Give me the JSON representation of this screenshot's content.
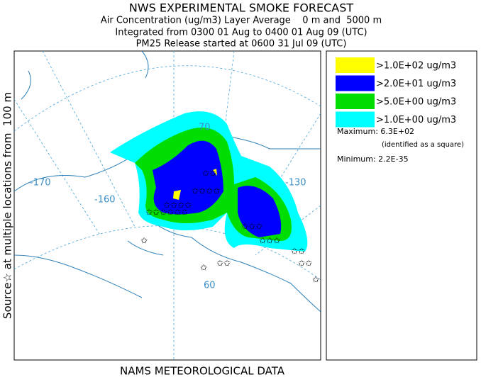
{
  "header": {
    "title": "NWS EXPERIMENTAL SMOKE FORECAST",
    "lines": [
      "Air Concentration (ug/m3) Layer Average    0 m and  5000 m",
      "Integrated from 0300 01 Aug to 0400 01 Aug 09 (UTC)",
      "PM25 Release started at 0600 31 Jul 09 (UTC)"
    ]
  },
  "side_label": "Source☆ at multiple locations from  100 m",
  "footer": "NAMS METEOROLOGICAL DATA",
  "map": {
    "labels": [
      "-170",
      "-160",
      "-130",
      "70",
      "60"
    ]
  },
  "legend": {
    "items": [
      {
        "label": ">1.0E+02 ug/m3",
        "color": "#ffff00"
      },
      {
        "label": ">2.0E+01 ug/m3",
        "color": "#0000ff"
      },
      {
        "label": ">5.0E+00 ug/m3",
        "color": "#00dd00"
      },
      {
        "label": ">1.0E+00 ug/m3",
        "color": "#00ffff"
      }
    ],
    "maximum": "Maximum: 6.3E+02",
    "max_note": "(identified as a square)",
    "minimum": "Minimum: 2.2E-35"
  }
}
